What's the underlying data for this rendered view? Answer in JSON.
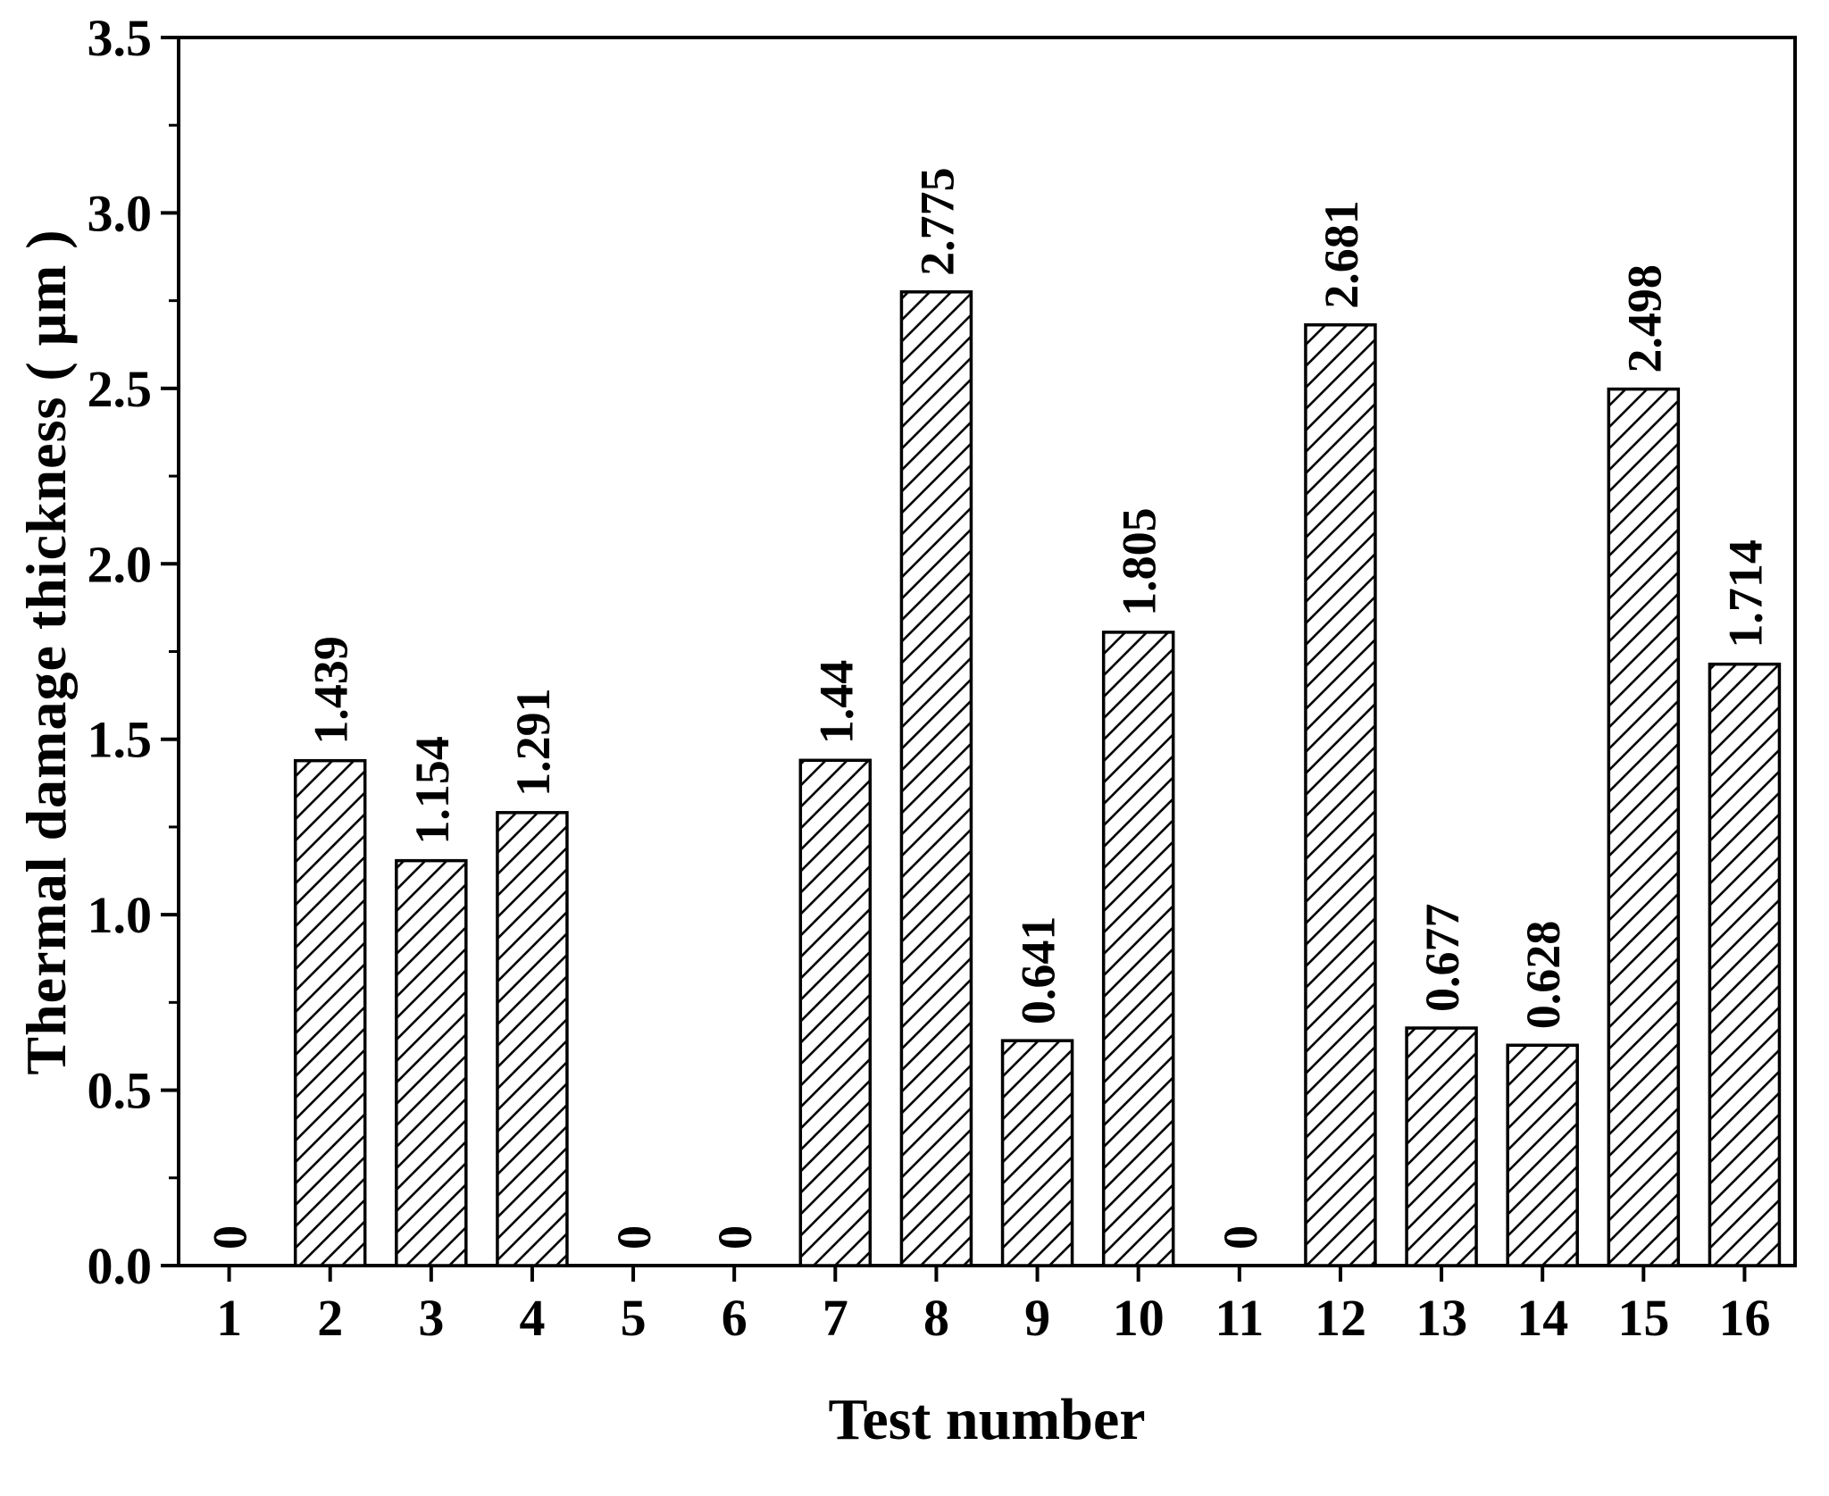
{
  "chart_data": {
    "type": "bar",
    "title": "",
    "xlabel": "Test number",
    "ylabel": "Thermal damage thickness ( μm )",
    "categories": [
      "1",
      "2",
      "3",
      "4",
      "5",
      "6",
      "7",
      "8",
      "9",
      "10",
      "11",
      "12",
      "13",
      "14",
      "15",
      "16"
    ],
    "values": [
      0,
      1.439,
      1.154,
      1.291,
      0,
      0,
      1.44,
      2.775,
      0.641,
      1.805,
      0,
      2.681,
      0.677,
      0.628,
      2.498,
      1.714
    ],
    "labels": [
      "0",
      "1.439",
      "1.154",
      "1.291",
      "0",
      "0",
      "1.44",
      "2.775",
      "0.641",
      "1.805",
      "0",
      "2.681",
      "0.677",
      "0.628",
      "2.498",
      "1.714"
    ],
    "ylim": [
      0,
      3.5
    ],
    "ytick_step": 0.5,
    "yticks": [
      "0.0",
      "0.5",
      "1.0",
      "1.5",
      "2.0",
      "2.5",
      "3.0",
      "3.5"
    ],
    "grid": "off",
    "legend": "none",
    "bar_fill": "#ffffff",
    "bar_hatch": "diagonal-forward",
    "line_color": "#000000",
    "background": "#ffffff"
  }
}
